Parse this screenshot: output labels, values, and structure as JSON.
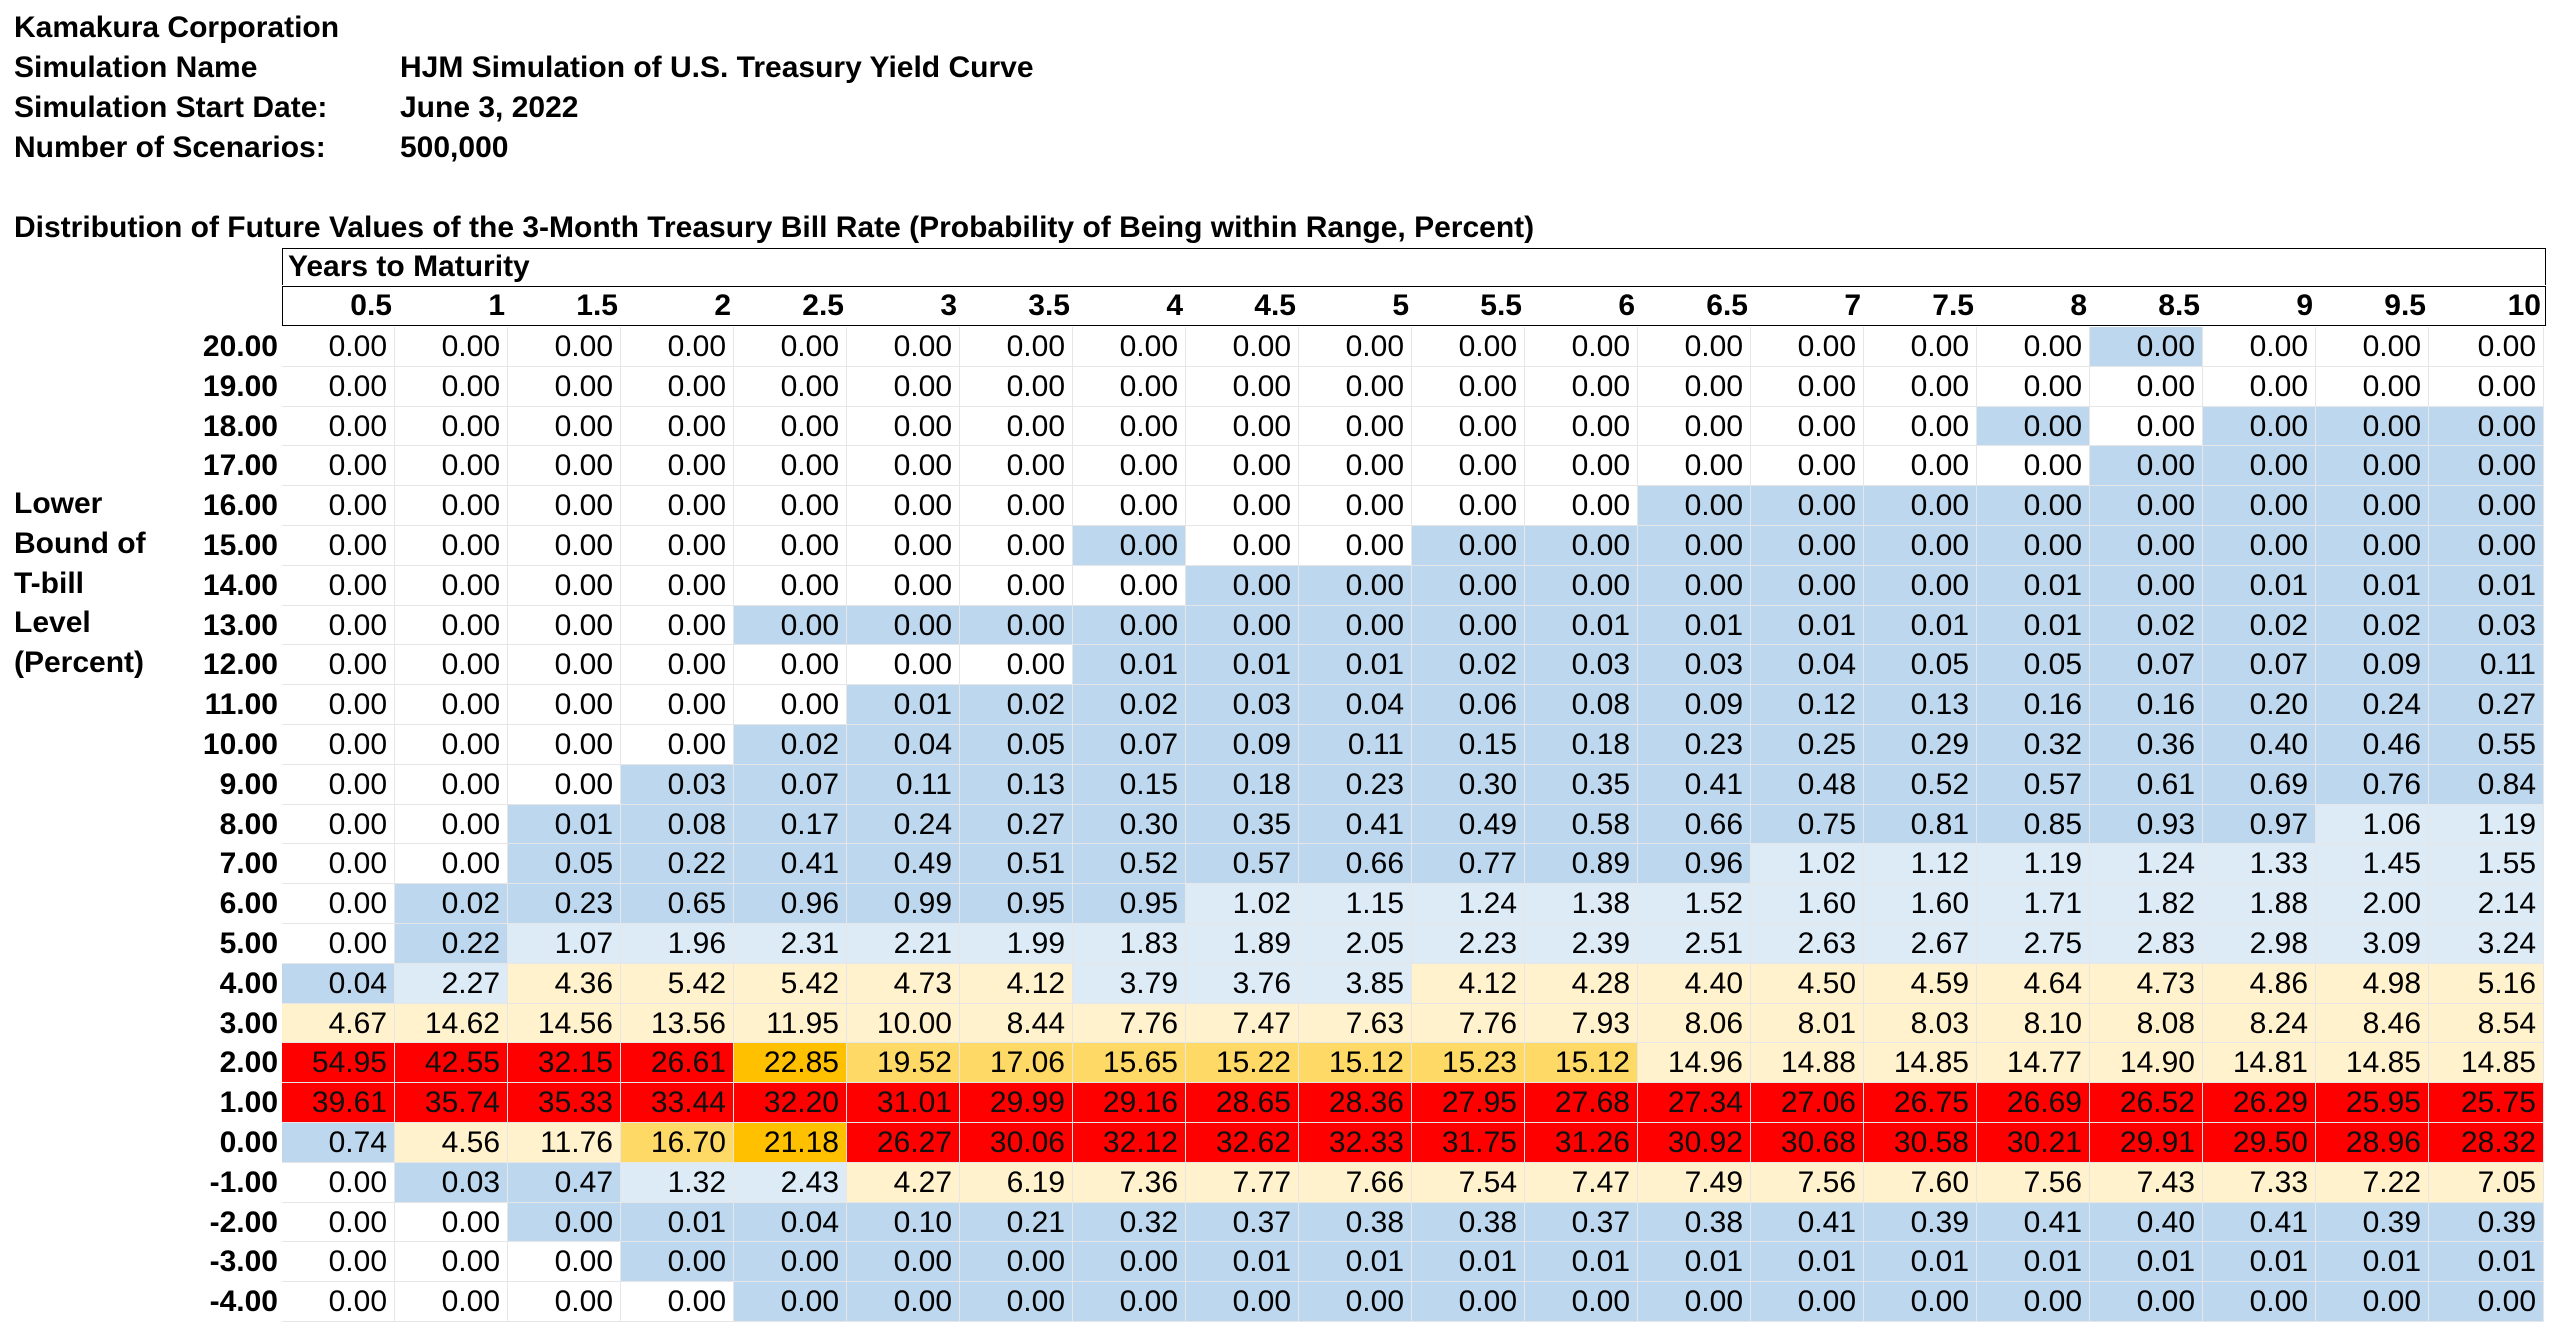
{
  "header": {
    "company": "Kamakura Corporation",
    "rows": [
      {
        "label": "Simulation Name",
        "value": "HJM Simulation of U.S. Treasury Yield Curve"
      },
      {
        "label": "Simulation Start Date:",
        "value": "June 3, 2022"
      },
      {
        "label": "Number of Scenarios:",
        "value": "500,000"
      }
    ]
  },
  "table": {
    "title": "Distribution of Future Values of the 3-Month Treasury Bill Rate (Probability of Being within Range, Percent)",
    "column_group_label": "Years to Maturity",
    "row_axis_label": [
      "Lower",
      "Bound of",
      "T-bill",
      "Level",
      "(Percent)"
    ],
    "maturities": [
      "0.5",
      "1",
      "1.5",
      "2",
      "2.5",
      "3",
      "3.5",
      "4",
      "4.5",
      "5",
      "5.5",
      "6",
      "6.5",
      "7",
      "7.5",
      "8",
      "8.5",
      "9",
      "9.5",
      "10"
    ],
    "colors": {
      "blue": "#bdd7ee",
      "lightblue": "#ddebf7",
      "white": "#ffffff",
      "cream": "#fff2cc",
      "amber": "#ffc000",
      "gold": "#ffd966",
      "red": "#ff0000"
    },
    "rows": [
      {
        "bound": "20.00",
        "values": [
          "0.00",
          "0.00",
          "0.00",
          "0.00",
          "0.00",
          "0.00",
          "0.00",
          "0.00",
          "0.00",
          "0.00",
          "0.00",
          "0.00",
          "0.00",
          "0.00",
          "0.00",
          "0.00",
          "0.00",
          "0.00",
          "0.00",
          "0.00"
        ]
      },
      {
        "bound": "19.00",
        "values": [
          "0.00",
          "0.00",
          "0.00",
          "0.00",
          "0.00",
          "0.00",
          "0.00",
          "0.00",
          "0.00",
          "0.00",
          "0.00",
          "0.00",
          "0.00",
          "0.00",
          "0.00",
          "0.00",
          "0.00",
          "0.00",
          "0.00",
          "0.00"
        ]
      },
      {
        "bound": "18.00",
        "values": [
          "0.00",
          "0.00",
          "0.00",
          "0.00",
          "0.00",
          "0.00",
          "0.00",
          "0.00",
          "0.00",
          "0.00",
          "0.00",
          "0.00",
          "0.00",
          "0.00",
          "0.00",
          "0.00",
          "0.00",
          "0.00",
          "0.00",
          "0.00"
        ]
      },
      {
        "bound": "17.00",
        "values": [
          "0.00",
          "0.00",
          "0.00",
          "0.00",
          "0.00",
          "0.00",
          "0.00",
          "0.00",
          "0.00",
          "0.00",
          "0.00",
          "0.00",
          "0.00",
          "0.00",
          "0.00",
          "0.00",
          "0.00",
          "0.00",
          "0.00",
          "0.00"
        ]
      },
      {
        "bound": "16.00",
        "values": [
          "0.00",
          "0.00",
          "0.00",
          "0.00",
          "0.00",
          "0.00",
          "0.00",
          "0.00",
          "0.00",
          "0.00",
          "0.00",
          "0.00",
          "0.00",
          "0.00",
          "0.00",
          "0.00",
          "0.00",
          "0.00",
          "0.00",
          "0.00"
        ]
      },
      {
        "bound": "15.00",
        "values": [
          "0.00",
          "0.00",
          "0.00",
          "0.00",
          "0.00",
          "0.00",
          "0.00",
          "0.00",
          "0.00",
          "0.00",
          "0.00",
          "0.00",
          "0.00",
          "0.00",
          "0.00",
          "0.00",
          "0.00",
          "0.00",
          "0.00",
          "0.00"
        ]
      },
      {
        "bound": "14.00",
        "values": [
          "0.00",
          "0.00",
          "0.00",
          "0.00",
          "0.00",
          "0.00",
          "0.00",
          "0.00",
          "0.00",
          "0.00",
          "0.00",
          "0.00",
          "0.00",
          "0.00",
          "0.00",
          "0.01",
          "0.00",
          "0.01",
          "0.01",
          "0.01"
        ]
      },
      {
        "bound": "13.00",
        "values": [
          "0.00",
          "0.00",
          "0.00",
          "0.00",
          "0.00",
          "0.00",
          "0.00",
          "0.00",
          "0.00",
          "0.00",
          "0.00",
          "0.01",
          "0.01",
          "0.01",
          "0.01",
          "0.01",
          "0.02",
          "0.02",
          "0.02",
          "0.03"
        ]
      },
      {
        "bound": "12.00",
        "values": [
          "0.00",
          "0.00",
          "0.00",
          "0.00",
          "0.00",
          "0.00",
          "0.00",
          "0.01",
          "0.01",
          "0.01",
          "0.02",
          "0.03",
          "0.03",
          "0.04",
          "0.05",
          "0.05",
          "0.07",
          "0.07",
          "0.09",
          "0.11"
        ]
      },
      {
        "bound": "11.00",
        "values": [
          "0.00",
          "0.00",
          "0.00",
          "0.00",
          "0.00",
          "0.01",
          "0.02",
          "0.02",
          "0.03",
          "0.04",
          "0.06",
          "0.08",
          "0.09",
          "0.12",
          "0.13",
          "0.16",
          "0.16",
          "0.20",
          "0.24",
          "0.27"
        ]
      },
      {
        "bound": "10.00",
        "values": [
          "0.00",
          "0.00",
          "0.00",
          "0.00",
          "0.02",
          "0.04",
          "0.05",
          "0.07",
          "0.09",
          "0.11",
          "0.15",
          "0.18",
          "0.23",
          "0.25",
          "0.29",
          "0.32",
          "0.36",
          "0.40",
          "0.46",
          "0.55"
        ]
      },
      {
        "bound": "9.00",
        "values": [
          "0.00",
          "0.00",
          "0.00",
          "0.03",
          "0.07",
          "0.11",
          "0.13",
          "0.15",
          "0.18",
          "0.23",
          "0.30",
          "0.35",
          "0.41",
          "0.48",
          "0.52",
          "0.57",
          "0.61",
          "0.69",
          "0.76",
          "0.84"
        ]
      },
      {
        "bound": "8.00",
        "values": [
          "0.00",
          "0.00",
          "0.01",
          "0.08",
          "0.17",
          "0.24",
          "0.27",
          "0.30",
          "0.35",
          "0.41",
          "0.49",
          "0.58",
          "0.66",
          "0.75",
          "0.81",
          "0.85",
          "0.93",
          "0.97",
          "1.06",
          "1.19"
        ]
      },
      {
        "bound": "7.00",
        "values": [
          "0.00",
          "0.00",
          "0.05",
          "0.22",
          "0.41",
          "0.49",
          "0.51",
          "0.52",
          "0.57",
          "0.66",
          "0.77",
          "0.89",
          "0.96",
          "1.02",
          "1.12",
          "1.19",
          "1.24",
          "1.33",
          "1.45",
          "1.55"
        ]
      },
      {
        "bound": "6.00",
        "values": [
          "0.00",
          "0.02",
          "0.23",
          "0.65",
          "0.96",
          "0.99",
          "0.95",
          "0.95",
          "1.02",
          "1.15",
          "1.24",
          "1.38",
          "1.52",
          "1.60",
          "1.60",
          "1.71",
          "1.82",
          "1.88",
          "2.00",
          "2.14"
        ]
      },
      {
        "bound": "5.00",
        "values": [
          "0.00",
          "0.22",
          "1.07",
          "1.96",
          "2.31",
          "2.21",
          "1.99",
          "1.83",
          "1.89",
          "2.05",
          "2.23",
          "2.39",
          "2.51",
          "2.63",
          "2.67",
          "2.75",
          "2.83",
          "2.98",
          "3.09",
          "3.24"
        ]
      },
      {
        "bound": "4.00",
        "values": [
          "0.04",
          "2.27",
          "4.36",
          "5.42",
          "5.42",
          "4.73",
          "4.12",
          "3.79",
          "3.76",
          "3.85",
          "4.12",
          "4.28",
          "4.40",
          "4.50",
          "4.59",
          "4.64",
          "4.73",
          "4.86",
          "4.98",
          "5.16"
        ]
      },
      {
        "bound": "3.00",
        "values": [
          "4.67",
          "14.62",
          "14.56",
          "13.56",
          "11.95",
          "10.00",
          "8.44",
          "7.76",
          "7.47",
          "7.63",
          "7.76",
          "7.93",
          "8.06",
          "8.01",
          "8.03",
          "8.10",
          "8.08",
          "8.24",
          "8.46",
          "8.54"
        ]
      },
      {
        "bound": "2.00",
        "values": [
          "54.95",
          "42.55",
          "32.15",
          "26.61",
          "22.85",
          "19.52",
          "17.06",
          "15.65",
          "15.22",
          "15.12",
          "15.23",
          "15.12",
          "14.96",
          "14.88",
          "14.85",
          "14.77",
          "14.90",
          "14.81",
          "14.85",
          "14.85"
        ]
      },
      {
        "bound": "1.00",
        "values": [
          "39.61",
          "35.74",
          "35.33",
          "33.44",
          "32.20",
          "31.01",
          "29.99",
          "29.16",
          "28.65",
          "28.36",
          "27.95",
          "27.68",
          "27.34",
          "27.06",
          "26.75",
          "26.69",
          "26.52",
          "26.29",
          "25.95",
          "25.75"
        ]
      },
      {
        "bound": "0.00",
        "values": [
          "0.74",
          "4.56",
          "11.76",
          "16.70",
          "21.18",
          "26.27",
          "30.06",
          "32.12",
          "32.62",
          "32.33",
          "31.75",
          "31.26",
          "30.92",
          "30.68",
          "30.58",
          "30.21",
          "29.91",
          "29.50",
          "28.96",
          "28.32"
        ]
      },
      {
        "bound": "-1.00",
        "values": [
          "0.00",
          "0.03",
          "0.47",
          "1.32",
          "2.43",
          "4.27",
          "6.19",
          "7.36",
          "7.77",
          "7.66",
          "7.54",
          "7.47",
          "7.49",
          "7.56",
          "7.60",
          "7.56",
          "7.43",
          "7.33",
          "7.22",
          "7.05"
        ]
      },
      {
        "bound": "-2.00",
        "values": [
          "0.00",
          "0.00",
          "0.00",
          "0.01",
          "0.04",
          "0.10",
          "0.21",
          "0.32",
          "0.37",
          "0.38",
          "0.38",
          "0.37",
          "0.38",
          "0.41",
          "0.39",
          "0.41",
          "0.40",
          "0.41",
          "0.39",
          "0.39"
        ]
      },
      {
        "bound": "-3.00",
        "values": [
          "0.00",
          "0.00",
          "0.00",
          "0.00",
          "0.00",
          "0.00",
          "0.00",
          "0.00",
          "0.01",
          "0.01",
          "0.01",
          "0.01",
          "0.01",
          "0.01",
          "0.01",
          "0.01",
          "0.01",
          "0.01",
          "0.01",
          "0.01"
        ]
      },
      {
        "bound": "-4.00",
        "values": [
          "0.00",
          "0.00",
          "0.00",
          "0.00",
          "0.00",
          "0.00",
          "0.00",
          "0.00",
          "0.00",
          "0.00",
          "0.00",
          "0.00",
          "0.00",
          "0.00",
          "0.00",
          "0.00",
          "0.00",
          "0.00",
          "0.00",
          "0.00"
        ]
      }
    ]
  }
}
